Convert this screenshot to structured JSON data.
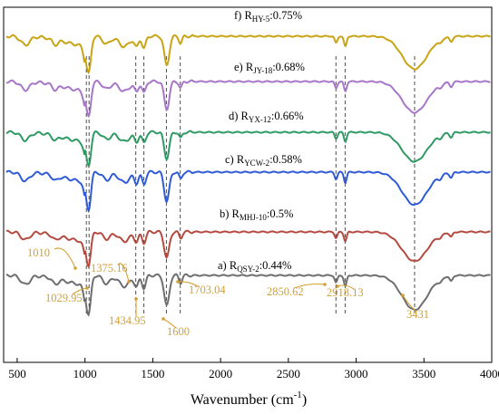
{
  "chart_data": {
    "type": "line",
    "title": "",
    "xlabel": "Wavenumber (cm",
    "xlabel_sup": "-1",
    "xlabel_close": ")",
    "ylabel": "",
    "xlim": [
      400,
      4000
    ],
    "xticks": [
      "500",
      "1000",
      "1500",
      "2000",
      "2500",
      "3000",
      "3500",
      "4000"
    ],
    "grid": false,
    "ref_lines": [
      1010,
      1029.95,
      1375.16,
      1434.95,
      1600,
      1703.04,
      2850.62,
      2918.13,
      3431
    ],
    "annotation_color": "#d4a032",
    "annotations": [
      {
        "text": "1010",
        "x": 1010
      },
      {
        "text": "1029.95",
        "x": 1029.95
      },
      {
        "text": "1375.16",
        "x": 1375.16
      },
      {
        "text": "1434.95",
        "x": 1434.95
      },
      {
        "text": "1600",
        "x": 1600
      },
      {
        "text": "1703.04",
        "x": 1703.04
      },
      {
        "text": "2850.62",
        "x": 2850.62
      },
      {
        "text": "2918.13",
        "x": 2918.13
      },
      {
        "text": "3431",
        "x": 3431
      }
    ],
    "series": [
      {
        "label_prefix": "f) R",
        "label_sub": "HY-5",
        "label_suffix": ":0.75%",
        "color": "#c8a414"
      },
      {
        "label_prefix": "e) R",
        "label_sub": "JY-18",
        "label_suffix": ":0.68%",
        "color": "#a776c9"
      },
      {
        "label_prefix": "d) R",
        "label_sub": "YX-12",
        "label_suffix": ":0.66%",
        "color": "#2f9a64"
      },
      {
        "label_prefix": "c) R",
        "label_sub": "YCW-2",
        "label_suffix": ":0.58%",
        "color": "#2f5bd6"
      },
      {
        "label_prefix": "b) R",
        "label_sub": "MHJ-10",
        "label_suffix": ":0.5%",
        "color": "#b54a40"
      },
      {
        "label_prefix": "a) R",
        "label_sub": "QSY-2",
        "label_suffix": ":0.44%",
        "color": "#6e6e6e"
      }
    ]
  }
}
